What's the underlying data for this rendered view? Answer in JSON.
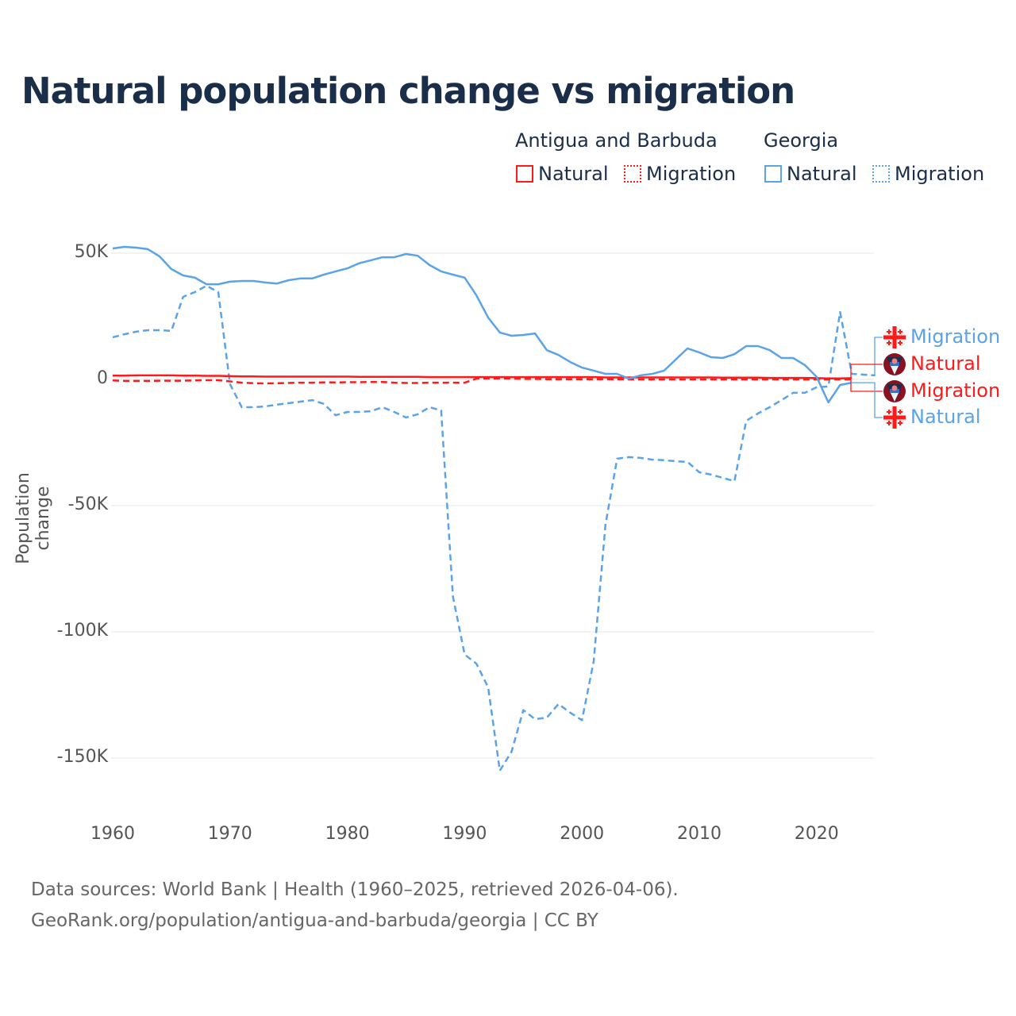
{
  "chart_data": {
    "type": "line",
    "title": "Natural population change vs migration",
    "xlabel": "",
    "ylabel": "Population change",
    "xlim": [
      1960,
      2025
    ],
    "ylim": [
      -165000,
      55000
    ],
    "x_ticks": [
      "1960",
      "1970",
      "1980",
      "1990",
      "2000",
      "2010",
      "2020"
    ],
    "y_ticks": [
      {
        "v": 50000,
        "label": "50K"
      },
      {
        "v": 0,
        "label": "0"
      },
      {
        "v": -50000,
        "label": "-50K"
      },
      {
        "v": -100000,
        "label": "-100K"
      },
      {
        "v": -150000,
        "label": "-150K"
      }
    ],
    "grid": true,
    "legend_placement": "top-right",
    "legend": {
      "groups": [
        {
          "name": "Antigua and Barbuda",
          "items": [
            "Natural",
            "Migration"
          ]
        },
        {
          "name": "Georgia",
          "items": [
            "Natural",
            "Migration"
          ]
        }
      ]
    },
    "series": [
      {
        "country": "Georgia",
        "name": "Migration",
        "color": "#5ba3e8",
        "dash": true,
        "start": 1960,
        "values": [
          16.7,
          17.9,
          18.9,
          19.5,
          19.5,
          19.2,
          32.7,
          34.6,
          37.1,
          34.6,
          -1.9,
          -11,
          -11,
          -10.7,
          -10,
          -9.4,
          -8.8,
          -8.2,
          -9.7,
          -14.2,
          -12.9,
          -12.9,
          -12.6,
          -11,
          -12.9,
          -15.1,
          -13.8,
          -11,
          -12.3,
          -86,
          -109,
          -112.6,
          -122,
          -155,
          -147.5,
          -131,
          -134.6,
          -134,
          -128.6,
          -132,
          -135,
          -111.6,
          -57.5,
          -31.4,
          -30.8,
          -31.1,
          -31.8,
          -32,
          -32.4,
          -32.7,
          -36.8,
          -37.7,
          -39,
          -40.3,
          -16.4,
          -13.5,
          -11,
          -8.2,
          -5.3,
          -5.3,
          -3.1,
          -2.8,
          26.7,
          2.2,
          1.9,
          1.6
        ],
        "unit": "thousands"
      },
      {
        "country": "Antigua and Barbuda",
        "name": "Natural",
        "color": "#ff1a1a",
        "dash": false,
        "start": 1960,
        "values": [
          1.5,
          1.5,
          1.6,
          1.6,
          1.6,
          1.6,
          1.5,
          1.5,
          1.4,
          1.4,
          1.3,
          1.2,
          1.2,
          1.1,
          1.1,
          1.1,
          1.1,
          1.1,
          1.1,
          1.1,
          1.1,
          1.0,
          1.0,
          1.0,
          1.0,
          1.0,
          1.0,
          0.9,
          0.9,
          0.9,
          0.9,
          0.9,
          0.9,
          0.9,
          0.9,
          0.9,
          0.9,
          0.9,
          0.9,
          0.9,
          0.9,
          0.9,
          0.8,
          0.8,
          0.8,
          0.8,
          0.8,
          0.8,
          0.8,
          0.8,
          0.8,
          0.8,
          0.7,
          0.7,
          0.7,
          0.7,
          0.6,
          0.6,
          0.6,
          0.6,
          0.5,
          0.4,
          0.4,
          0.5
        ],
        "unit": "thousands"
      },
      {
        "country": "Antigua and Barbuda",
        "name": "Migration",
        "color": "#ff1a1a",
        "dash": true,
        "start": 1960,
        "values": [
          -0.4,
          -0.6,
          -0.6,
          -0.6,
          -0.5,
          -0.5,
          -0.5,
          -0.4,
          -0.3,
          -0.3,
          -0.8,
          -1.3,
          -1.5,
          -1.6,
          -1.5,
          -1.4,
          -1.3,
          -1.3,
          -1.2,
          -1.2,
          -1.1,
          -1.1,
          -1.0,
          -1.0,
          -1.3,
          -1.4,
          -1.4,
          -1.3,
          -1.3,
          -1.3,
          -1.3,
          0.3,
          0.3,
          0.3,
          0.3,
          0.2,
          0.2,
          0.1,
          0.1,
          0.1,
          0.1,
          0.1,
          0.1,
          0.1,
          0,
          0,
          0,
          0,
          0,
          0,
          0,
          0,
          0,
          0,
          0,
          0,
          0,
          0,
          0,
          0,
          0,
          0,
          0,
          0
        ],
        "unit": "thousands"
      },
      {
        "country": "Georgia",
        "name": "Natural",
        "color": "#5ba3e8",
        "dash": false,
        "start": 1960,
        "values": [
          51.9,
          52.5,
          52.2,
          51.6,
          48.7,
          43.7,
          41.2,
          40.3,
          37.7,
          37.7,
          38.7,
          39,
          39,
          38.4,
          38,
          39.3,
          40,
          40,
          41.5,
          42.8,
          44,
          46,
          47.2,
          48.4,
          48.4,
          49.7,
          49,
          45.3,
          42.8,
          41.5,
          40.3,
          33.3,
          24.5,
          18.6,
          17.3,
          17.6,
          18.2,
          11.6,
          9.7,
          6.9,
          4.7,
          3.5,
          2.2,
          2.2,
          0.3,
          1.6,
          2.2,
          3.5,
          7.9,
          12.3,
          10.7,
          8.8,
          8.5,
          10,
          13.2,
          13.2,
          11.6,
          8.5,
          8.5,
          5.7,
          1,
          -9.1,
          -2.2,
          -1.3
        ],
        "unit": "thousands"
      }
    ],
    "end_labels": [
      {
        "text": "Migration",
        "country": "Georgia",
        "color": "#5ba3e8"
      },
      {
        "text": "Natural",
        "country": "Antigua and Barbuda",
        "color": "#ff1a1a"
      },
      {
        "text": "Migration",
        "country": "Antigua and Barbuda",
        "color": "#ff1a1a"
      },
      {
        "text": "Natural",
        "country": "Georgia",
        "color": "#5ba3e8"
      }
    ]
  },
  "footer": {
    "line1": "Data sources: World Bank | Health (1960–2025, retrieved 2026-04-06).",
    "line2": "GeoRank.org/population/antigua-and-barbuda/georgia | CC BY"
  }
}
